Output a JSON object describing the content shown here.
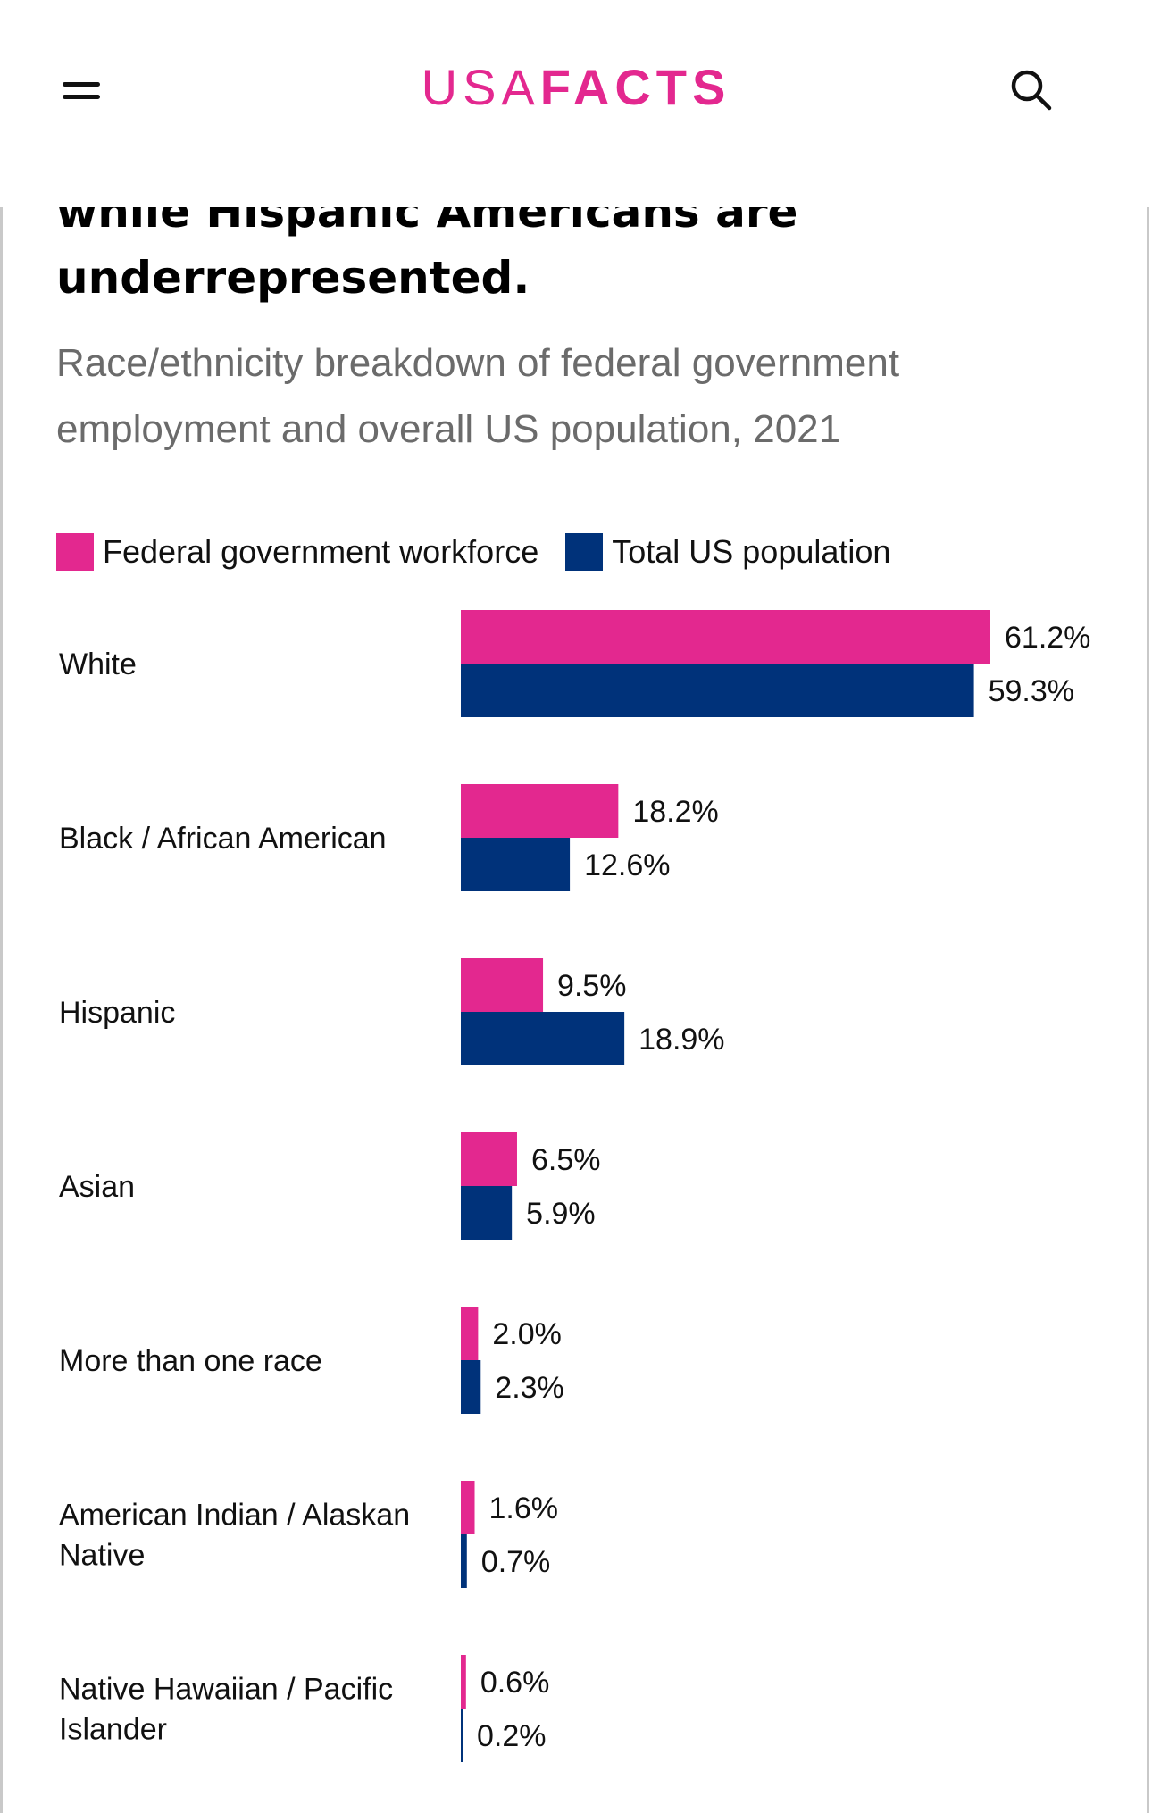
{
  "header": {
    "logo_light": "USA",
    "logo_bold": "FACTS"
  },
  "article": {
    "headline_line1": "while Hispanic Americans are",
    "headline_line2": "underrepresented.",
    "subtitle": "Race/ethnicity breakdown of federal government employment and overall US population, 2021"
  },
  "colors": {
    "brand": "#e3288f",
    "federal": "#e3288f",
    "population": "#00327a"
  },
  "icons": {
    "menu": "hamburger-menu-icon",
    "search": "search-icon"
  },
  "chart_data": {
    "type": "bar",
    "orientation": "horizontal",
    "categories": [
      "White",
      "Black / African American",
      "Hispanic",
      "Asian",
      "More than one race",
      "American Indian / Alaskan Native",
      "Native Hawaiian / Pacific Islander"
    ],
    "series": [
      {
        "name": "Federal government workforce",
        "values": [
          61.2,
          18.2,
          9.5,
          6.5,
          2.0,
          1.6,
          0.6
        ]
      },
      {
        "name": "Total US population",
        "values": [
          59.3,
          12.6,
          18.9,
          5.9,
          2.3,
          0.7,
          0.2
        ]
      }
    ],
    "value_suffix": "%",
    "xlim": [
      0,
      61.2
    ],
    "legend_position": "top-left",
    "grid": false,
    "title": "",
    "xlabel": "",
    "ylabel": ""
  }
}
